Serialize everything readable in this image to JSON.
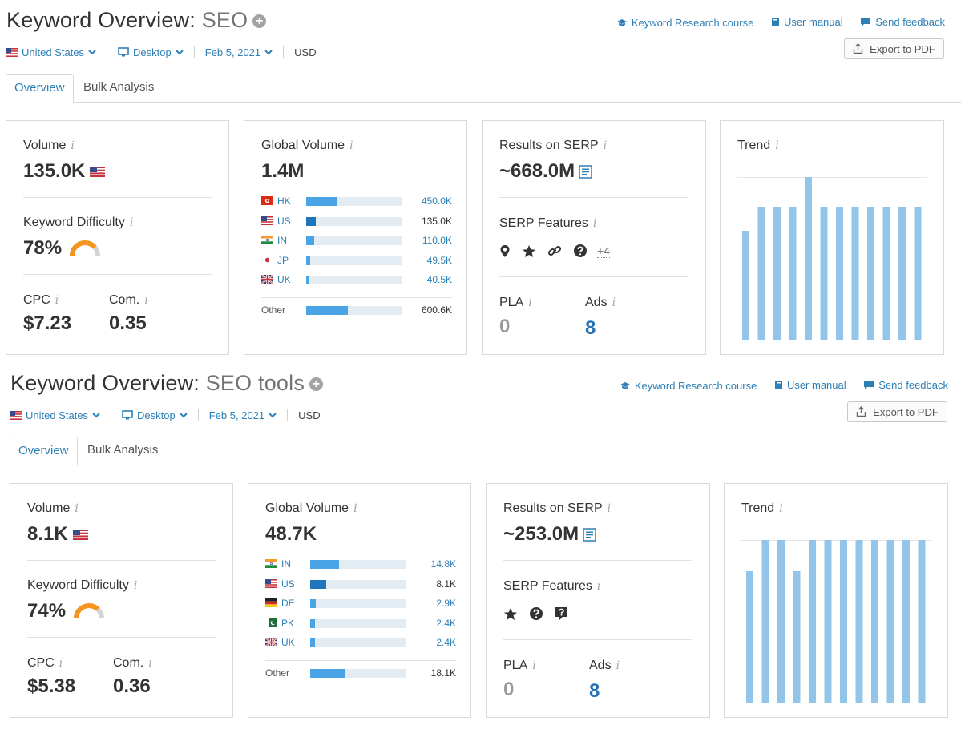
{
  "colors": {
    "link": "#2e7fb5",
    "bar_light": "#49a3e4",
    "bar_dark": "#1f74bc",
    "trend_bar": "#93c4ea",
    "gauge": "#f7941d"
  },
  "header_links": {
    "course": "Keyword Research course",
    "manual": "User manual",
    "feedback": "Send feedback"
  },
  "export_label": "Export to PDF",
  "sections": [
    {
      "title_prefix": "Keyword Overview:",
      "keyword": "SEO",
      "filters": {
        "country": "United States",
        "device": "Desktop",
        "date": "Feb 5, 2021",
        "currency": "USD"
      },
      "tabs": [
        "Overview",
        "Bulk Analysis"
      ],
      "volume": {
        "label": "Volume",
        "value": "135.0K"
      },
      "kd": {
        "label": "Keyword Difficulty",
        "value": "78%",
        "percent": 78
      },
      "cpc": {
        "label": "CPC",
        "value": "$7.23"
      },
      "com": {
        "label": "Com.",
        "value": "0.35"
      },
      "global": {
        "label": "Global Volume",
        "value": "1.4M",
        "rows": [
          {
            "code": "HK",
            "value": "450.0K",
            "share": 0.32,
            "flag": "hk"
          },
          {
            "code": "US",
            "value": "135.0K",
            "share": 0.1,
            "flag": "us",
            "dark": true
          },
          {
            "code": "IN",
            "value": "110.0K",
            "share": 0.08,
            "flag": "in"
          },
          {
            "code": "JP",
            "value": "49.5K",
            "share": 0.04,
            "flag": "jp"
          },
          {
            "code": "UK",
            "value": "40.5K",
            "share": 0.03,
            "flag": "uk"
          }
        ],
        "other": {
          "label": "Other",
          "value": "600.6K",
          "share": 0.43
        }
      },
      "serp": {
        "label": "Results on SERP",
        "value": "~668.0M"
      },
      "features": {
        "label": "SERP Features",
        "icons": [
          "pin-icon",
          "star-icon",
          "link-icon",
          "question-icon"
        ],
        "more": "+4"
      },
      "pla": {
        "label": "PLA",
        "value": "0"
      },
      "ads": {
        "label": "Ads",
        "value": "8"
      },
      "trend": {
        "label": "Trend",
        "values": [
          0.67,
          0.82,
          0.82,
          0.82,
          1.0,
          0.82,
          0.82,
          0.82,
          0.82,
          0.82,
          0.82,
          0.82
        ]
      }
    },
    {
      "title_prefix": "Keyword Overview:",
      "keyword": "SEO tools",
      "filters": {
        "country": "United States",
        "device": "Desktop",
        "date": "Feb 5, 2021",
        "currency": "USD"
      },
      "tabs": [
        "Overview",
        "Bulk Analysis"
      ],
      "volume": {
        "label": "Volume",
        "value": "8.1K"
      },
      "kd": {
        "label": "Keyword Difficulty",
        "value": "74%",
        "percent": 74
      },
      "cpc": {
        "label": "CPC",
        "value": "$5.38"
      },
      "com": {
        "label": "Com.",
        "value": "0.36"
      },
      "global": {
        "label": "Global Volume",
        "value": "48.7K",
        "rows": [
          {
            "code": "IN",
            "value": "14.8K",
            "share": 0.3,
            "flag": "in"
          },
          {
            "code": "US",
            "value": "8.1K",
            "share": 0.17,
            "flag": "us",
            "dark": true
          },
          {
            "code": "DE",
            "value": "2.9K",
            "share": 0.06,
            "flag": "de"
          },
          {
            "code": "PK",
            "value": "2.4K",
            "share": 0.05,
            "flag": "pk"
          },
          {
            "code": "UK",
            "value": "2.4K",
            "share": 0.05,
            "flag": "uk"
          }
        ],
        "other": {
          "label": "Other",
          "value": "18.1K",
          "share": 0.37
        }
      },
      "serp": {
        "label": "Results on SERP",
        "value": "~253.0M"
      },
      "features": {
        "label": "SERP Features",
        "icons": [
          "star-icon",
          "question-icon",
          "faq-icon"
        ],
        "more": ""
      },
      "pla": {
        "label": "PLA",
        "value": "0"
      },
      "ads": {
        "label": "Ads",
        "value": "8"
      },
      "trend": {
        "label": "Trend",
        "values": [
          0.81,
          1.0,
          1.0,
          0.81,
          1.0,
          1.0,
          1.0,
          1.0,
          1.0,
          1.0,
          1.0,
          1.0
        ]
      }
    }
  ]
}
